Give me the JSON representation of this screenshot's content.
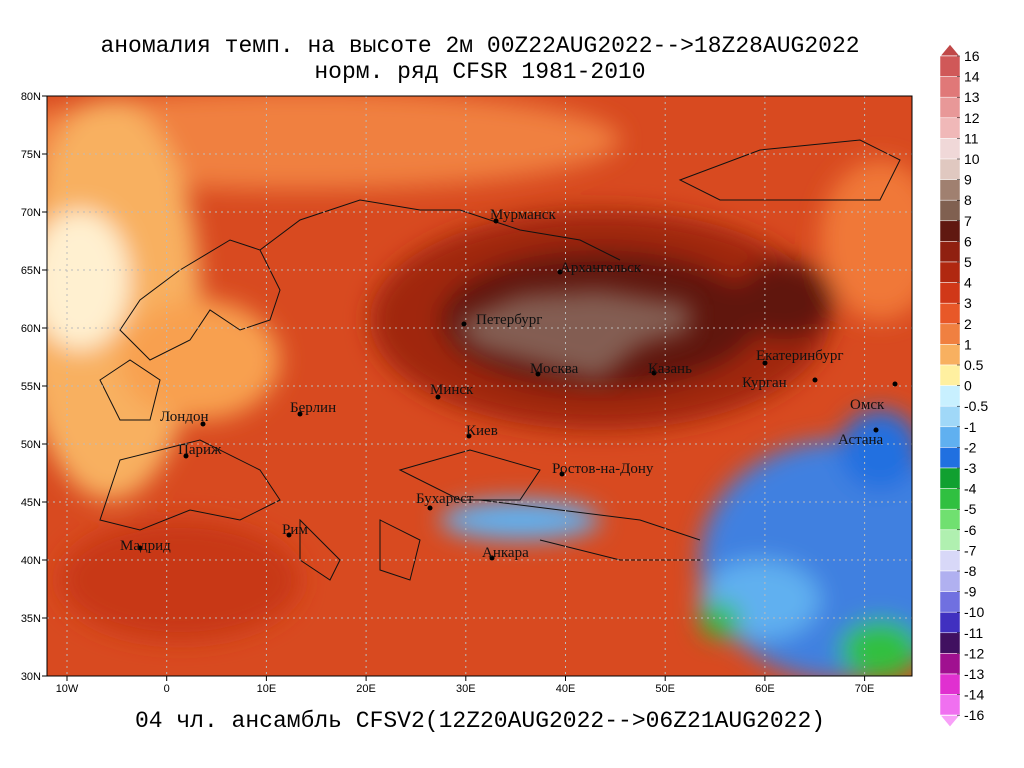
{
  "title": {
    "line1": "аномалия темп. на высоте 2м 00Z22AUG2022-->18Z28AUG2022",
    "line2": "норм. ряд CFSR 1981-2010"
  },
  "footer": "04 чл. ансамбль CFSV2(12Z20AUG2022-->06Z21AUG2022)",
  "map": {
    "lon_labels": [
      "10W",
      "0",
      "10E",
      "20E",
      "30E",
      "40E",
      "50E",
      "60E",
      "70E"
    ],
    "lat_labels": [
      "80N",
      "75N",
      "70N",
      "65N",
      "60N",
      "55N",
      "50N",
      "45N",
      "40N",
      "35N",
      "30N"
    ],
    "cities": [
      "Мурманск",
      "Архангельск",
      "Петербург",
      "Москва",
      "Казань",
      "Екатеринбург",
      "Курган",
      "Омск",
      "Астана",
      "Минск",
      "Берлин",
      "Лондон",
      "Париж",
      "Киев",
      "Ростов-на-Дону",
      "Бухарест",
      "Рим",
      "Мадрид",
      "Анкара"
    ]
  },
  "colorbar": {
    "levels": [
      16,
      14,
      13,
      12,
      11,
      10,
      9,
      8,
      7,
      6,
      5,
      4,
      3,
      2,
      1,
      0.5,
      0,
      -0.5,
      -1,
      -2,
      -3,
      -4,
      -5,
      -6,
      -7,
      -8,
      -9,
      -10,
      -11,
      -12,
      -13,
      -14,
      -16
    ],
    "colors": [
      "#c04848",
      "#d05858",
      "#e07878",
      "#e89898",
      "#f0b8b8",
      "#f0d8d8",
      "#e0c8c0",
      "#a08070",
      "#806050",
      "#601810",
      "#902010",
      "#b02810",
      "#d03818",
      "#e85828",
      "#f08040",
      "#f8b060",
      "#fff0a0",
      "#c8f0ff",
      "#a0d8f8",
      "#60b0f0",
      "#2070e0",
      "#10a030",
      "#30c040",
      "#70e070",
      "#b0f0b0",
      "#d8d8f8",
      "#b0b0f0",
      "#7070e0",
      "#4030c0",
      "#401060",
      "#a01090",
      "#e030d0",
      "#f070f0",
      "#f8a0f8"
    ]
  }
}
